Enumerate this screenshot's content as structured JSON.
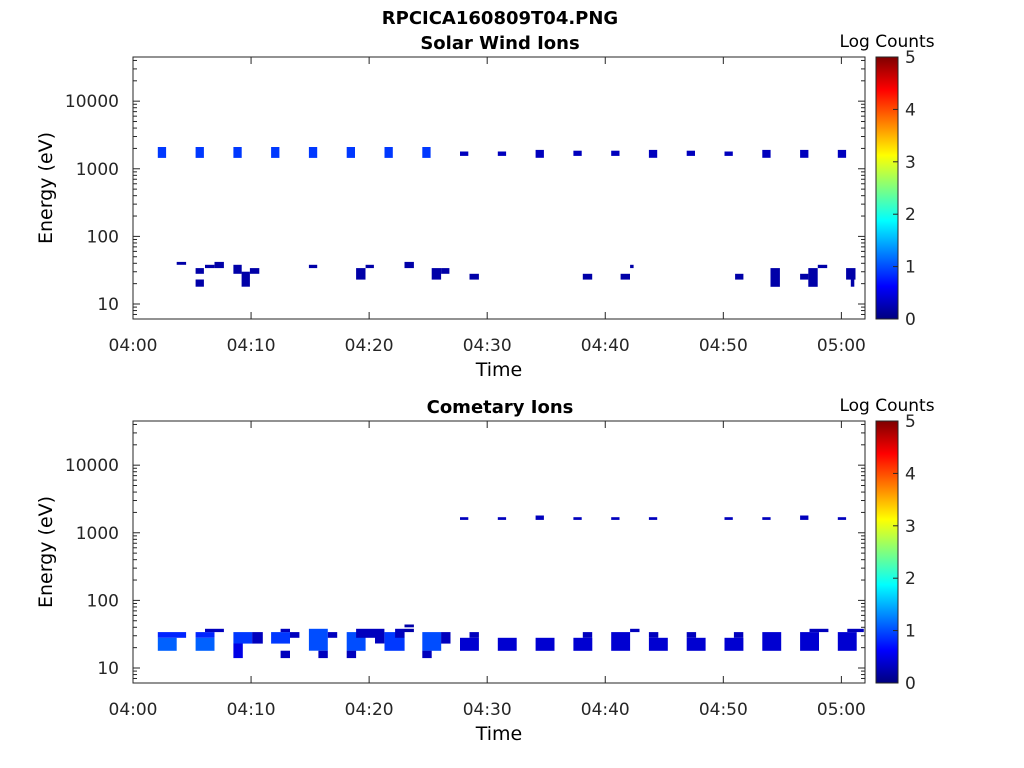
{
  "figure_title": "RPCICA160809T04.PNG",
  "colors": {
    "axis": "#262626",
    "colormap": [
      "#00007f",
      "#0000ff",
      "#007fff",
      "#00ffff",
      "#7fff7f",
      "#ffff00",
      "#ff7f00",
      "#ff0000",
      "#7f0000"
    ]
  },
  "chart_data": [
    {
      "type": "heatmap",
      "title": "Solar Wind Ions",
      "xlabel": "Time",
      "ylabel": "Energy (eV)",
      "x_ticks": [
        "04:00",
        "04:10",
        "04:20",
        "04:30",
        "04:40",
        "04:50",
        "05:00"
      ],
      "x_tick_minutes": [
        0,
        10,
        20,
        30,
        40,
        50,
        60
      ],
      "xlim_minutes": [
        0,
        62
      ],
      "y_scale": "log",
      "y_ticks": [
        "10",
        "100",
        "1000",
        "10000"
      ],
      "y_tick_values": [
        10,
        100,
        1000,
        10000
      ],
      "ylim": [
        6,
        45000
      ],
      "colorbar": {
        "label": "Log Counts",
        "range": [
          0,
          5
        ],
        "ticks": [
          "0",
          "1",
          "2",
          "3",
          "4",
          "5"
        ]
      },
      "cells": [
        [
          2.1,
          2.8,
          1450,
          2100,
          0.9
        ],
        [
          5.3,
          6.0,
          1450,
          2100,
          0.9
        ],
        [
          8.5,
          9.2,
          1450,
          2100,
          0.9
        ],
        [
          11.7,
          12.4,
          1450,
          2100,
          0.9
        ],
        [
          14.9,
          15.6,
          1450,
          2100,
          0.9
        ],
        [
          18.1,
          18.8,
          1450,
          2100,
          0.9
        ],
        [
          21.3,
          22.0,
          1450,
          2100,
          0.9
        ],
        [
          24.5,
          25.2,
          1450,
          2100,
          0.9
        ],
        [
          27.7,
          28.4,
          1550,
          1800,
          0.3
        ],
        [
          30.9,
          31.6,
          1550,
          1800,
          0.3
        ],
        [
          34.1,
          34.8,
          1450,
          1900,
          0.3
        ],
        [
          37.3,
          38.0,
          1550,
          1850,
          0.3
        ],
        [
          40.5,
          41.2,
          1550,
          1850,
          0.3
        ],
        [
          43.7,
          44.4,
          1450,
          1900,
          0.3
        ],
        [
          46.9,
          47.6,
          1550,
          1850,
          0.3
        ],
        [
          50.1,
          50.8,
          1550,
          1800,
          0.3
        ],
        [
          53.3,
          54.0,
          1450,
          1900,
          0.3
        ],
        [
          56.5,
          57.2,
          1450,
          1900,
          0.3
        ],
        [
          59.7,
          60.4,
          1450,
          1900,
          0.3
        ],
        [
          3.7,
          4.5,
          38,
          42,
          0.2
        ],
        [
          5.3,
          6.0,
          28,
          34,
          0.2
        ],
        [
          5.3,
          6.0,
          18,
          23,
          0.2
        ],
        [
          6.1,
          6.9,
          34,
          38,
          0.2
        ],
        [
          6.9,
          7.7,
          34,
          42,
          0.2
        ],
        [
          8.5,
          9.2,
          28,
          38,
          0.2
        ],
        [
          9.2,
          9.9,
          18,
          30,
          0.2
        ],
        [
          9.9,
          10.7,
          28,
          34,
          0.2
        ],
        [
          14.9,
          15.6,
          34,
          38,
          0.2
        ],
        [
          18.9,
          19.7,
          23,
          34,
          0.2
        ],
        [
          19.7,
          20.4,
          34,
          38,
          0.2
        ],
        [
          23.0,
          23.8,
          34,
          42,
          0.2
        ],
        [
          25.3,
          26.1,
          23,
          34,
          0.2
        ],
        [
          26.1,
          26.8,
          28,
          34,
          0.2
        ],
        [
          28.5,
          29.3,
          23,
          28,
          0.2
        ],
        [
          38.1,
          38.9,
          23,
          28,
          0.2
        ],
        [
          41.3,
          42.1,
          23,
          28,
          0.2
        ],
        [
          42.1,
          42.4,
          34,
          38,
          0.2
        ],
        [
          51.0,
          51.7,
          23,
          28,
          0.2
        ],
        [
          54.0,
          54.8,
          18,
          34,
          0.2
        ],
        [
          56.5,
          57.2,
          23,
          28,
          0.2
        ],
        [
          57.2,
          58.0,
          18,
          34,
          0.2
        ],
        [
          58.0,
          58.8,
          34,
          38,
          0.2
        ],
        [
          60.4,
          61.2,
          23,
          34,
          0.2
        ],
        [
          60.8,
          61.1,
          18,
          23,
          0.2
        ]
      ]
    },
    {
      "type": "heatmap",
      "title": "Cometary Ions",
      "xlabel": "Time",
      "ylabel": "Energy (eV)",
      "x_ticks": [
        "04:00",
        "04:10",
        "04:20",
        "04:30",
        "04:40",
        "04:50",
        "05:00"
      ],
      "x_tick_minutes": [
        0,
        10,
        20,
        30,
        40,
        50,
        60
      ],
      "xlim_minutes": [
        0,
        62
      ],
      "y_scale": "log",
      "y_ticks": [
        "10",
        "100",
        "1000",
        "10000"
      ],
      "y_tick_values": [
        10,
        100,
        1000,
        10000
      ],
      "ylim": [
        6,
        45000
      ],
      "colorbar": {
        "label": "Log Counts",
        "range": [
          0,
          5
        ],
        "ticks": [
          "0",
          "1",
          "2",
          "3",
          "4",
          "5"
        ]
      },
      "cells": [
        [
          27.7,
          28.4,
          1550,
          1700,
          0.3
        ],
        [
          30.9,
          31.6,
          1550,
          1700,
          0.3
        ],
        [
          34.1,
          34.8,
          1550,
          1800,
          0.3
        ],
        [
          37.3,
          38.0,
          1550,
          1700,
          0.3
        ],
        [
          40.5,
          41.2,
          1550,
          1700,
          0.3
        ],
        [
          43.7,
          44.4,
          1550,
          1700,
          0.3
        ],
        [
          50.1,
          50.8,
          1550,
          1700,
          0.3
        ],
        [
          53.3,
          54.0,
          1550,
          1700,
          0.3
        ],
        [
          56.5,
          57.2,
          1550,
          1800,
          0.3
        ],
        [
          59.7,
          60.4,
          1550,
          1700,
          0.3
        ],
        [
          2.1,
          4.5,
          28,
          34,
          0.8
        ],
        [
          2.1,
          3.7,
          18,
          28,
          1.1
        ],
        [
          5.3,
          6.9,
          28,
          34,
          0.8
        ],
        [
          6.1,
          7.7,
          34,
          38,
          0.3
        ],
        [
          5.3,
          6.9,
          18,
          28,
          1.1
        ],
        [
          8.5,
          10.1,
          23,
          34,
          0.9
        ],
        [
          8.5,
          9.3,
          14,
          23,
          0.5
        ],
        [
          10.1,
          11.0,
          23,
          34,
          0.3
        ],
        [
          11.7,
          13.3,
          23,
          34,
          0.9
        ],
        [
          12.5,
          13.3,
          34,
          38,
          0.3
        ],
        [
          12.5,
          13.3,
          14,
          18,
          0.3
        ],
        [
          13.3,
          14.1,
          28,
          34,
          0.3
        ],
        [
          14.9,
          16.5,
          18,
          38,
          1.0
        ],
        [
          15.7,
          16.5,
          14,
          18,
          0.3
        ],
        [
          16.5,
          17.3,
          28,
          34,
          0.3
        ],
        [
          18.1,
          19.7,
          18,
          34,
          1.0
        ],
        [
          18.9,
          20.5,
          28,
          38,
          0.3
        ],
        [
          18.1,
          18.9,
          14,
          18,
          0.3
        ],
        [
          20.5,
          21.3,
          23,
          38,
          0.3
        ],
        [
          21.3,
          23.0,
          18,
          34,
          0.9
        ],
        [
          22.2,
          23.0,
          28,
          38,
          0.3
        ],
        [
          23.0,
          23.8,
          34,
          38,
          0.2
        ],
        [
          23.0,
          23.8,
          40,
          44,
          0.2
        ],
        [
          24.5,
          26.1,
          18,
          34,
          1.0
        ],
        [
          24.5,
          25.3,
          14,
          18,
          0.3
        ],
        [
          26.1,
          26.9,
          23,
          34,
          0.3
        ],
        [
          27.7,
          29.3,
          18,
          28,
          0.4
        ],
        [
          28.5,
          29.3,
          28,
          34,
          0.3
        ],
        [
          30.9,
          32.5,
          18,
          28,
          0.4
        ],
        [
          34.1,
          35.7,
          18,
          28,
          0.4
        ],
        [
          37.3,
          38.9,
          18,
          28,
          0.4
        ],
        [
          38.1,
          38.9,
          28,
          34,
          0.3
        ],
        [
          40.5,
          42.1,
          18,
          34,
          0.4
        ],
        [
          42.1,
          42.9,
          34,
          38,
          0.3
        ],
        [
          43.7,
          44.5,
          28,
          34,
          0.3
        ],
        [
          43.7,
          45.3,
          18,
          28,
          0.4
        ],
        [
          46.9,
          47.7,
          28,
          34,
          0.3
        ],
        [
          46.9,
          48.5,
          18,
          28,
          0.4
        ],
        [
          50.1,
          51.7,
          18,
          28,
          0.4
        ],
        [
          50.9,
          51.7,
          28,
          34,
          0.3
        ],
        [
          53.3,
          54.9,
          18,
          34,
          0.4
        ],
        [
          56.5,
          58.1,
          18,
          34,
          0.4
        ],
        [
          57.3,
          58.9,
          34,
          38,
          0.3
        ],
        [
          59.7,
          61.3,
          18,
          34,
          0.4
        ],
        [
          60.5,
          61.9,
          34,
          38,
          0.3
        ]
      ]
    }
  ]
}
